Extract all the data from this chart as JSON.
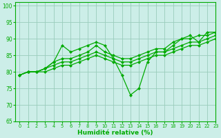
{
  "xlabel": "Humidité relative (%)",
  "bg_color": "#cceee8",
  "grid_color": "#99ccbb",
  "line_color": "#00aa00",
  "xlim": [
    -0.5,
    23
  ],
  "ylim": [
    65,
    101
  ],
  "yticks": [
    65,
    70,
    75,
    80,
    85,
    90,
    95,
    100
  ],
  "xticks": [
    0,
    1,
    2,
    3,
    4,
    5,
    6,
    7,
    8,
    9,
    10,
    11,
    12,
    13,
    14,
    15,
    16,
    17,
    18,
    19,
    20,
    21,
    22,
    23
  ],
  "series": [
    [
      79,
      80,
      80,
      81,
      83,
      88,
      86,
      87,
      88,
      89,
      88,
      84,
      79,
      73,
      75,
      83,
      86,
      86,
      88,
      90,
      91,
      89,
      92,
      92
    ],
    [
      79,
      80,
      80,
      81,
      83,
      84,
      84,
      85,
      86,
      88,
      86,
      85,
      84,
      84,
      85,
      86,
      87,
      87,
      89,
      90,
      90,
      91,
      91,
      92
    ],
    [
      79,
      80,
      80,
      81,
      82,
      83,
      83,
      84,
      85,
      86,
      85,
      84,
      83,
      83,
      84,
      85,
      86,
      86,
      87,
      88,
      89,
      89,
      90,
      91
    ],
    [
      79,
      80,
      80,
      80,
      81,
      82,
      82,
      83,
      84,
      85,
      84,
      83,
      82,
      82,
      83,
      84,
      85,
      85,
      86,
      87,
      88,
      88,
      89,
      90
    ]
  ]
}
